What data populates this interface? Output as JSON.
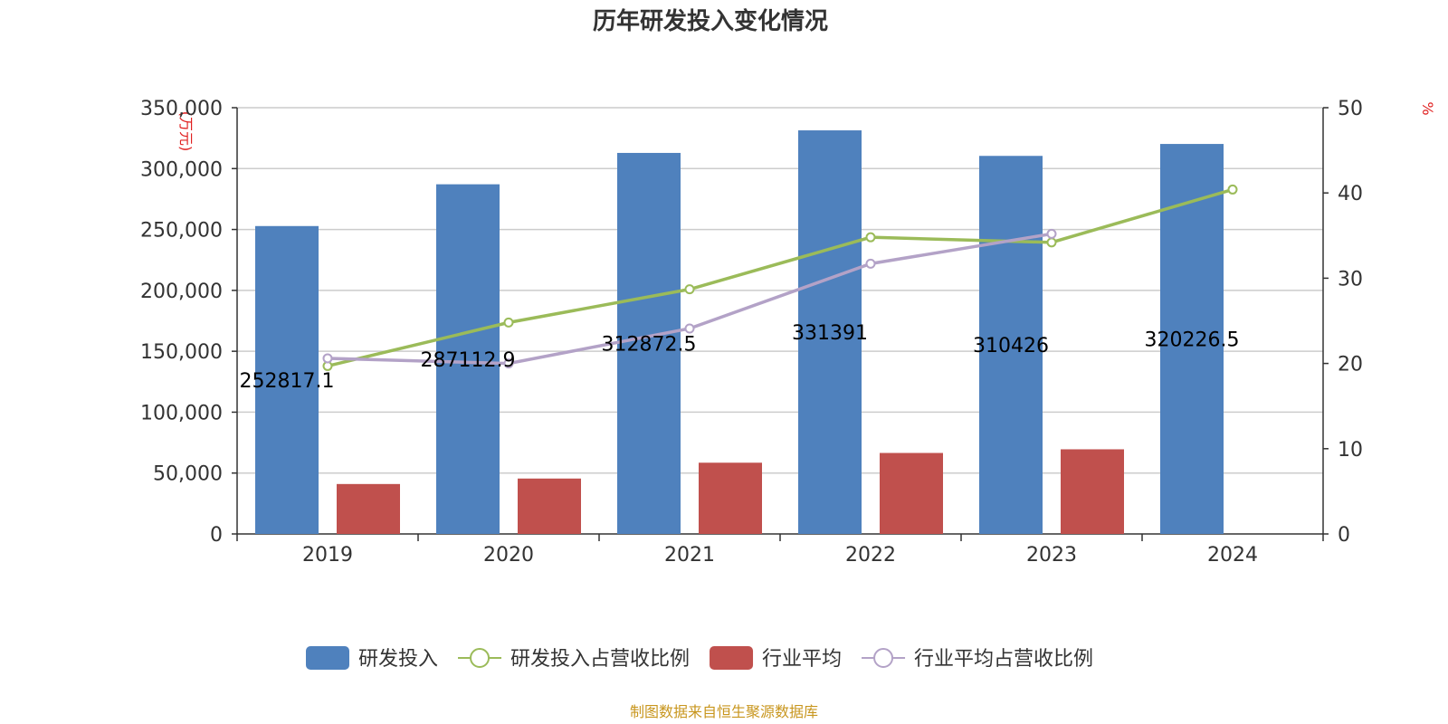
{
  "chart_data": {
    "type": "bar",
    "title": "历年研发投入变化情况",
    "categories": [
      "2019",
      "2020",
      "2021",
      "2022",
      "2023",
      "2024"
    ],
    "y_left": {
      "unit_label": "(万元)",
      "min": 0,
      "max": 350000,
      "ticks": [
        "0",
        "50,000",
        "100,000",
        "150,000",
        "200,000",
        "250,000",
        "300,000",
        "350,000"
      ]
    },
    "y_right": {
      "unit_label": "%",
      "min": 0,
      "max": 50,
      "ticks": [
        "0",
        "10",
        "20",
        "30",
        "40",
        "50"
      ]
    },
    "grid": true,
    "legend_position": "bottom-center",
    "series": [
      {
        "name": "研发投入",
        "kind": "bar",
        "axis": "left",
        "color": "#4f81bd",
        "values": [
          252817.1,
          287112.9,
          312872.5,
          331391,
          310426,
          320226.5
        ],
        "labels": [
          "252817.1",
          "287112.9",
          "312872.5",
          "331391",
          "310426",
          "320226.5"
        ]
      },
      {
        "name": "研发投入占营收比例",
        "kind": "line",
        "axis": "right",
        "color": "#9bbb59",
        "values": [
          19.7,
          24.8,
          28.7,
          34.8,
          34.2,
          40.4
        ]
      },
      {
        "name": "行业平均",
        "kind": "bar",
        "axis": "left",
        "color": "#c0504d",
        "values": [
          41000,
          45500,
          58500,
          66500,
          69500,
          null
        ]
      },
      {
        "name": "行业平均占营收比例",
        "kind": "line",
        "axis": "right",
        "color": "#b3a2c7",
        "values": [
          20.6,
          20.0,
          24.1,
          31.7,
          35.2,
          null
        ]
      }
    ],
    "source": "制图数据来自恒生聚源数据库"
  }
}
